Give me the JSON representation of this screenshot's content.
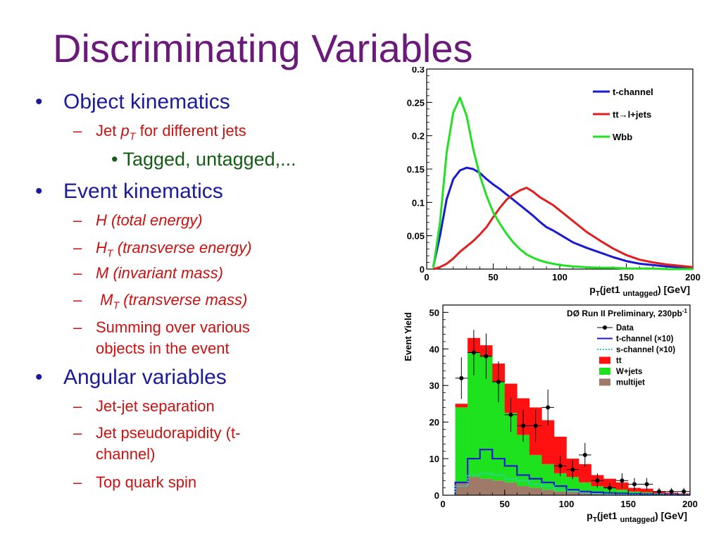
{
  "slide": {
    "title": "Discriminating Variables",
    "bullets": {
      "object_kinematics": "Object kinematics",
      "jet_pt_prefix": "Jet ",
      "jet_pt_p": "p",
      "jet_pt_sub": "T",
      "jet_pt_suffix": "  for different jets",
      "tagged": "Tagged, untagged,...",
      "event_kinematics": "Event kinematics",
      "h_total": "H (total energy)",
      "ht_h": "H",
      "ht_sub": "T",
      "ht_rest": " (transverse energy)",
      "m_inv": "M (invariant mass)",
      "mt_m": "M",
      "mt_sub": "T",
      "mt_rest": "  (transverse mass)",
      "summing_1": "Summing over various",
      "summing_2": "objects in the event",
      "angular": "Angular variables",
      "jetjet": "Jet-jet separation",
      "pseudo_1": "Jet pseudorapidity (t-",
      "pseudo_2": "channel)",
      "topspin": "Top quark spin"
    }
  },
  "chart_data": [
    {
      "type": "line",
      "xlabel": "p_T(jet1 untagged) [GeV]",
      "ylabel": "",
      "xlim": [
        0,
        200
      ],
      "ylim": [
        0,
        0.3
      ],
      "x_ticks": [
        "0",
        "50",
        "100",
        "150",
        "200"
      ],
      "y_ticks": [
        "0",
        "0.05",
        "0.1",
        "0.15",
        "0.2",
        "0.25",
        "0.3"
      ],
      "legend_position": "top-right",
      "series": [
        {
          "name": "t-channel",
          "color": "#1a1ad0",
          "x": [
            5,
            10,
            15,
            20,
            25,
            30,
            35,
            40,
            45,
            50,
            55,
            60,
            65,
            70,
            75,
            80,
            85,
            90,
            95,
            100,
            110,
            120,
            130,
            140,
            150,
            160,
            170,
            180,
            190,
            200
          ],
          "y": [
            0.004,
            0.05,
            0.105,
            0.135,
            0.148,
            0.152,
            0.15,
            0.144,
            0.135,
            0.127,
            0.12,
            0.112,
            0.104,
            0.096,
            0.088,
            0.08,
            0.071,
            0.063,
            0.058,
            0.052,
            0.04,
            0.032,
            0.025,
            0.018,
            0.012,
            0.008,
            0.006,
            0.004,
            0.003,
            0.002
          ]
        },
        {
          "name": "tt→l+jets",
          "color": "#e02020",
          "x": [
            5,
            10,
            15,
            20,
            25,
            30,
            35,
            40,
            45,
            50,
            55,
            60,
            65,
            70,
            75,
            80,
            85,
            90,
            95,
            100,
            110,
            120,
            130,
            140,
            150,
            160,
            170,
            180,
            190,
            200
          ],
          "y": [
            0.0,
            0.003,
            0.008,
            0.016,
            0.026,
            0.034,
            0.042,
            0.052,
            0.063,
            0.078,
            0.092,
            0.104,
            0.112,
            0.118,
            0.122,
            0.116,
            0.108,
            0.102,
            0.096,
            0.088,
            0.072,
            0.056,
            0.043,
            0.031,
            0.021,
            0.014,
            0.01,
            0.007,
            0.005,
            0.003
          ]
        },
        {
          "name": "Wbb",
          "color": "#22e022",
          "x": [
            5,
            10,
            15,
            20,
            25,
            30,
            35,
            40,
            45,
            50,
            55,
            60,
            65,
            70,
            75,
            80,
            85,
            90,
            95,
            100,
            110,
            120,
            130,
            140,
            150,
            160,
            170,
            180,
            190,
            200
          ],
          "y": [
            0.002,
            0.07,
            0.175,
            0.235,
            0.257,
            0.23,
            0.18,
            0.14,
            0.11,
            0.085,
            0.068,
            0.053,
            0.04,
            0.03,
            0.022,
            0.017,
            0.013,
            0.01,
            0.008,
            0.006,
            0.004,
            0.003,
            0.002,
            0.002,
            0.001,
            0.001,
            0.001,
            0.0,
            0.0,
            0.0
          ]
        }
      ]
    },
    {
      "type": "bar",
      "title": "DØ Run II Preliminary, 230pb",
      "title_superscript": "-1",
      "xlabel": "p_T(jet1 untagged) [GeV]",
      "ylabel": "Event Yield",
      "xlim": [
        0,
        200
      ],
      "ylim": [
        0,
        52
      ],
      "x_ticks": [
        "0",
        "50",
        "100",
        "150",
        "200"
      ],
      "y_ticks": [
        "0",
        "10",
        "20",
        "30",
        "40",
        "50"
      ],
      "legend_position": "top-right",
      "bin_width": 10,
      "bin_low_edges": [
        10,
        20,
        30,
        40,
        50,
        60,
        70,
        80,
        90,
        100,
        110,
        120,
        130,
        140,
        150,
        160,
        170,
        180,
        190
      ],
      "stacked_series": [
        {
          "name": "multijet",
          "color": "#a07a68",
          "values": [
            3.5,
            5,
            4.5,
            4,
            3.5,
            2.5,
            2,
            1.5,
            1,
            1,
            0.8,
            0.5,
            0.5,
            0.4,
            0.3,
            0.3,
            0.2,
            0.2,
            0.1
          ]
        },
        {
          "name": "W+jets",
          "color": "#1ee21e",
          "values": [
            20.5,
            34,
            33.5,
            27,
            19,
            14,
            9,
            7,
            5,
            4,
            2.7,
            2,
            1.5,
            1.1,
            0.7,
            0.5,
            0.3,
            0.2,
            0.1
          ]
        },
        {
          "name": "tt",
          "color": "#ff1111",
          "values": [
            1,
            4,
            3,
            5,
            8,
            10,
            13,
            12,
            10,
            5,
            5,
            3,
            2.5,
            2,
            1,
            1,
            0.5,
            0.3,
            0.3
          ]
        }
      ],
      "line_series": [
        {
          "name": "t-channel (×10)",
          "color": "#1a1ad0",
          "style": "step",
          "values": [
            3.5,
            10,
            12.5,
            10,
            8,
            5.5,
            4.5,
            3.5,
            2.5,
            1.5,
            1,
            0.8,
            0.6,
            0.5,
            0.4,
            0.3,
            0.2,
            0.2,
            0.1
          ]
        },
        {
          "name": "s-channel (×10)",
          "color": "#33cccc",
          "style": "dotted-step",
          "values": [
            2.5,
            5.5,
            6,
            5.5,
            4.5,
            4,
            3,
            2.5,
            1.5,
            1,
            0.6,
            0.4,
            0.3,
            0.2,
            0.2,
            0.1,
            0.1,
            0.1,
            0.1
          ]
        }
      ],
      "data_series": {
        "name": "Data",
        "x": [
          15,
          25,
          35,
          45,
          55,
          65,
          75,
          85,
          95,
          105,
          115,
          125,
          135,
          145,
          155,
          165,
          175,
          185,
          195
        ],
        "y": [
          32,
          39,
          38,
          31,
          22,
          19,
          19,
          24,
          8,
          7,
          11,
          4,
          2,
          4,
          3,
          3,
          1,
          1,
          1
        ],
        "yerr": [
          5.7,
          6.2,
          6.2,
          5.6,
          4.7,
          4.4,
          4.4,
          4.9,
          2.8,
          2.6,
          3.3,
          2,
          1.4,
          2,
          1.7,
          1.7,
          1,
          1,
          1
        ]
      }
    }
  ]
}
